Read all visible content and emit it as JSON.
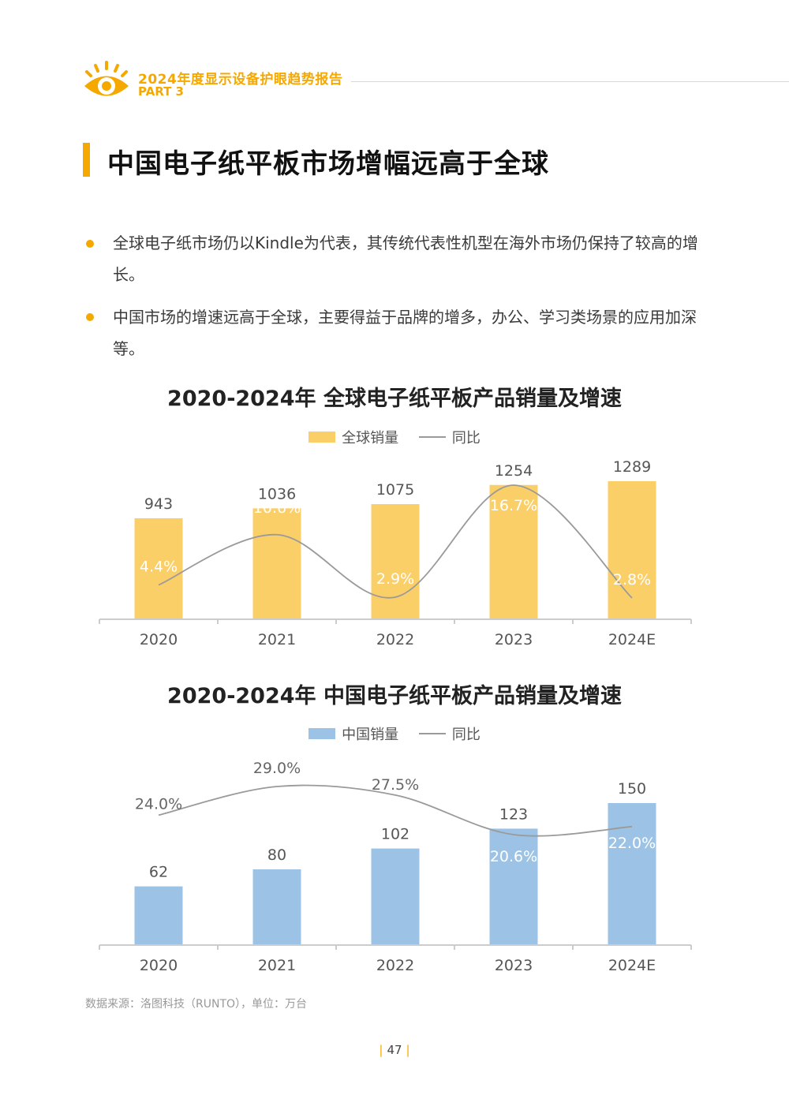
{
  "header": {
    "title": "2024年度显示设备护眼趋势报告",
    "part": "PART 3"
  },
  "heading": "中国电子纸平板市场增幅远高于全球",
  "bullets": [
    "全球电子纸市场仍以Kindle为代表，其传统代表性机型在海外市场仍保持了较高的增长。",
    "中国市场的增速远高于全球，主要得益于品牌的增多，办公、学习类场景的应用加深等。"
  ],
  "chart_data": [
    {
      "type": "bar",
      "title": "2020-2024年 全球电子纸平板产品销量及增速",
      "categories": [
        "2020",
        "2021",
        "2022",
        "2023",
        "2024E"
      ],
      "series": [
        {
          "name": "全球销量",
          "values": [
            943,
            1036,
            1075,
            1254,
            1289
          ],
          "color": "#fbcf68"
        },
        {
          "name": "同比",
          "type": "line",
          "values": [
            4.4,
            10.6,
            2.9,
            16.7,
            2.8
          ],
          "labels": [
            "4.4%",
            "10.6%",
            "2.9%",
            "16.7%",
            "2.8%"
          ],
          "color": "#9a9a9a"
        }
      ],
      "legend": [
        "全球销量",
        "同比"
      ],
      "legend_position": "top"
    },
    {
      "type": "bar",
      "title": "2020-2024年 中国电子纸平板产品销量及增速",
      "categories": [
        "2020",
        "2021",
        "2022",
        "2023",
        "2024E"
      ],
      "series": [
        {
          "name": "中国销量",
          "values": [
            62,
            80,
            102,
            123,
            150
          ],
          "color": "#9cc3e6"
        },
        {
          "name": "同比",
          "type": "line",
          "values": [
            24.0,
            29.0,
            27.5,
            20.6,
            22.0
          ],
          "labels": [
            "24.0%",
            "29.0%",
            "27.5%",
            "20.6%",
            "22.0%"
          ],
          "color": "#9a9a9a"
        }
      ],
      "legend": [
        "中国销量",
        "同比"
      ],
      "legend_position": "top"
    }
  ],
  "source": "数据来源：洛图科技（RUNTO），单位：万台",
  "page_number": "47"
}
